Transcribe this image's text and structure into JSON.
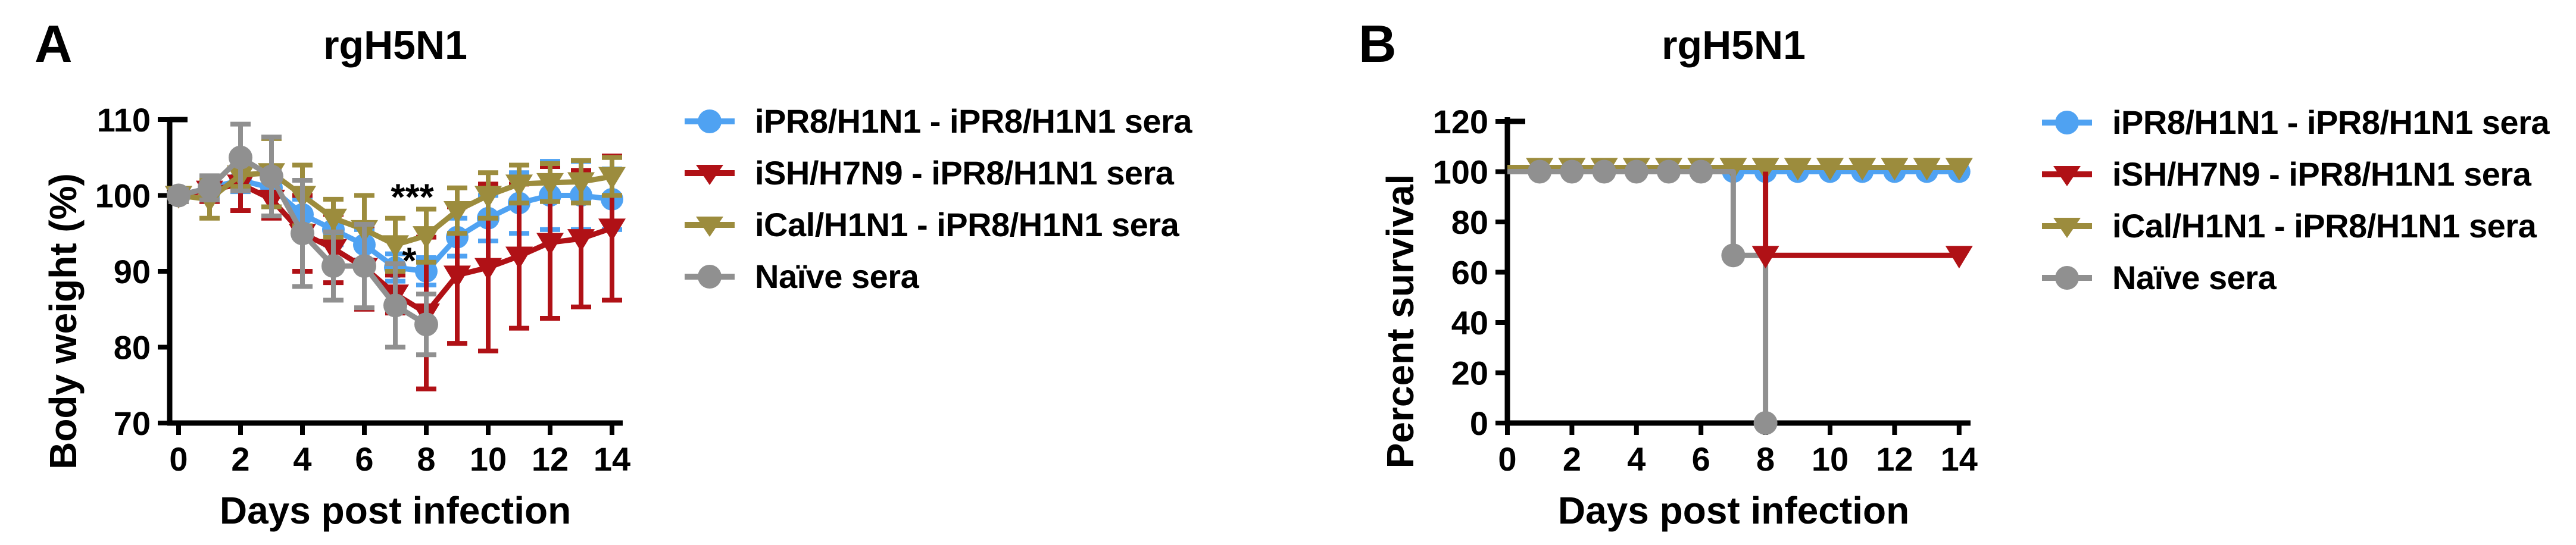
{
  "chart_data": [
    {
      "type": "line",
      "panel_label": "A",
      "title": "rgH5N1",
      "xlabel": "Days post infection",
      "ylabel": "Body weight (%)",
      "xlim": [
        0,
        14
      ],
      "ylim": [
        70,
        110
      ],
      "xticks": [
        0,
        2,
        4,
        6,
        8,
        10,
        12,
        14
      ],
      "yticks": [
        70,
        80,
        90,
        100,
        110
      ],
      "grid": false,
      "legend_position": "right",
      "x": [
        0,
        1,
        2,
        3,
        4,
        5,
        6,
        7,
        8,
        9,
        10,
        11,
        12,
        13,
        14
      ],
      "series": [
        {
          "name": "iPR8/H1N1 - iPR8/H1N1 sera",
          "color": "#4FA2F2",
          "marker": "circle",
          "values": [
            100,
            101,
            102,
            101,
            97.5,
            95.5,
            93.5,
            90.5,
            90,
            94.5,
            97,
            99,
            100,
            100,
            99.5
          ],
          "errors": [
            0.8,
            1.2,
            1.5,
            2.5,
            2,
            2,
            2,
            1.8,
            1.8,
            2.5,
            3,
            4,
            4.5,
            4.5,
            4
          ]
        },
        {
          "name": "iSH/H7N9 - iPR8/H1N1 sera",
          "color": "#B01116",
          "marker": "triangle-down",
          "values": [
            100,
            100.7,
            101.5,
            99.5,
            95,
            93,
            90.5,
            87,
            84.5,
            89.5,
            90.5,
            92,
            93.8,
            94.3,
            95.7
          ],
          "errors": [
            0.8,
            1.5,
            3.5,
            2.5,
            5,
            4.5,
            5.5,
            2.5,
            10,
            9,
            11,
            9.5,
            10,
            9,
            9.5
          ]
        },
        {
          "name": "iCal/H1N1 - iPR8/H1N1 sera",
          "color": "#9C8C3D",
          "marker": "triangle-down",
          "values": [
            100,
            99.5,
            102.7,
            103,
            100,
            97,
            95.5,
            93.5,
            94.7,
            98,
            100,
            101.5,
            101.7,
            101.8,
            102.5
          ],
          "errors": [
            0.8,
            2.5,
            1.5,
            4.5,
            4,
            2.5,
            4.5,
            3.5,
            3.5,
            3,
            3,
            2.5,
            2.5,
            2.8,
            2.5
          ]
        },
        {
          "name": "Naïve sera",
          "color": "#909090",
          "marker": "circle",
          "values": [
            100,
            101,
            105,
            102.5,
            95,
            90.7,
            90.7,
            85.5,
            83
          ],
          "errors": [
            0.8,
            1.6,
            4.4,
            5.2,
            7,
            4.5,
            5.5,
            5.5,
            4
          ]
        }
      ],
      "annotations": [
        {
          "text": "***",
          "x": 7.55,
          "y": 100.8
        },
        {
          "text": "*",
          "x": 7.45,
          "y": 92.4
        }
      ]
    },
    {
      "type": "step",
      "panel_label": "B",
      "title": "rgH5N1",
      "xlabel": "Days post infection",
      "ylabel": "Percent survival",
      "xlim": [
        0,
        14
      ],
      "ylim": [
        0,
        120
      ],
      "xticks": [
        0,
        2,
        4,
        6,
        8,
        10,
        12,
        14
      ],
      "yticks": [
        0,
        20,
        40,
        60,
        80,
        100,
        120
      ],
      "grid": false,
      "legend_position": "right",
      "series": [
        {
          "name": "iPR8/H1N1 - iPR8/H1N1 sera",
          "color": "#4FA2F2",
          "marker": "circle",
          "steps": [
            [
              0,
              100
            ],
            [
              14,
              100
            ]
          ],
          "markers_at": [
            [
              1,
              100
            ],
            [
              2,
              100
            ],
            [
              3,
              100
            ],
            [
              4,
              100
            ],
            [
              5,
              100
            ],
            [
              6,
              100
            ],
            [
              7,
              100
            ],
            [
              8,
              100
            ],
            [
              9,
              100
            ],
            [
              10,
              100
            ],
            [
              11,
              100
            ],
            [
              12,
              100
            ],
            [
              13,
              100
            ],
            [
              14,
              100
            ]
          ],
          "final_survival_pct": 100
        },
        {
          "name": "iSH/H7N9 - iPR8/H1N1 sera",
          "color": "#B01116",
          "marker": "triangle-down",
          "steps": [
            [
              0,
              100
            ],
            [
              8,
              100
            ],
            [
              8,
              66.7
            ],
            [
              14,
              66.7
            ]
          ],
          "markers_at": [
            [
              8,
              66.7
            ],
            [
              14,
              66.7
            ]
          ],
          "final_survival_pct": 66.7
        },
        {
          "name": "iCal/H1N1 - iPR8/H1N1 sera",
          "color": "#9C8C3D",
          "marker": "triangle-down",
          "steps": [
            [
              0,
              100
            ],
            [
              14,
              100
            ]
          ],
          "markers_at": [
            [
              1,
              100
            ],
            [
              2,
              100
            ],
            [
              3,
              100
            ],
            [
              4,
              100
            ],
            [
              5,
              100
            ],
            [
              6,
              100
            ],
            [
              7,
              100
            ],
            [
              8,
              100
            ],
            [
              9,
              100
            ],
            [
              10,
              100
            ],
            [
              11,
              100
            ],
            [
              12,
              100
            ],
            [
              13,
              100
            ],
            [
              14,
              100
            ]
          ],
          "final_survival_pct": 100
        },
        {
          "name": "Naïve sera",
          "color": "#909090",
          "marker": "circle",
          "steps": [
            [
              0,
              100
            ],
            [
              7,
              100
            ],
            [
              7,
              66.7
            ],
            [
              8,
              66.7
            ],
            [
              8,
              0
            ]
          ],
          "markers_at": [
            [
              1,
              100
            ],
            [
              2,
              100
            ],
            [
              3,
              100
            ],
            [
              4,
              100
            ],
            [
              5,
              100
            ],
            [
              6,
              100
            ],
            [
              7,
              66.7
            ],
            [
              8,
              0
            ]
          ],
          "final_survival_pct": 0
        }
      ],
      "annotations": []
    }
  ]
}
